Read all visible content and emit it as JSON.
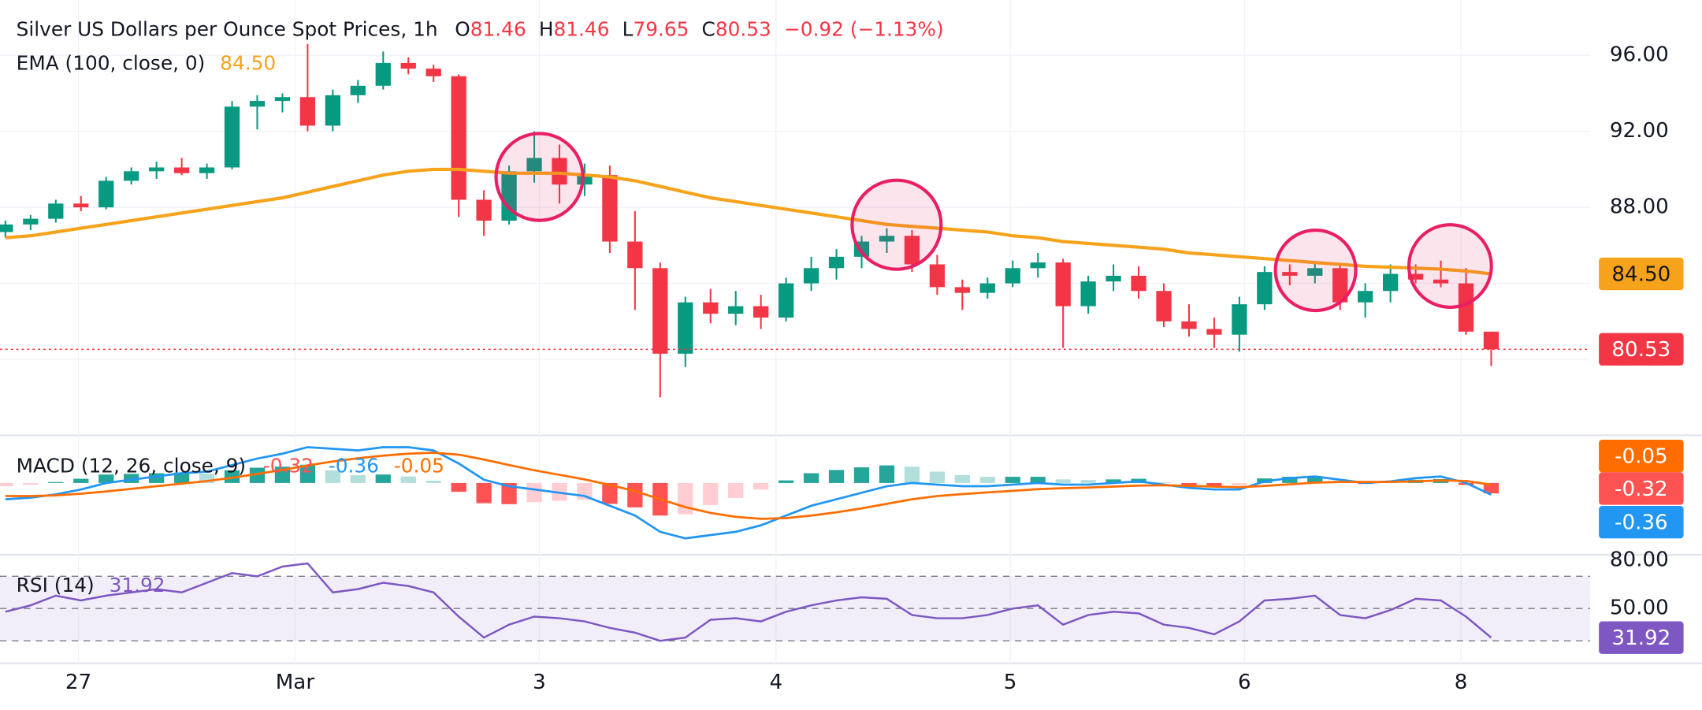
{
  "chart_data": {
    "type": "candlestick",
    "title": "Silver US Dollars per Ounce Spot Prices, 1h",
    "ohlc_letters": [
      "O",
      "H",
      "L",
      "C"
    ],
    "change": {
      "value": -0.92,
      "label": "−0.92 (−1.13%)"
    },
    "up_color": "#089981",
    "down_color": "#f23645",
    "open": [
      86.7,
      87.1,
      87.4,
      88.2,
      88.0,
      89.4,
      89.9,
      90.1,
      89.8,
      90.1,
      93.3,
      93.6,
      93.8,
      92.3,
      93.9,
      94.4,
      95.6,
      95.3,
      94.9,
      88.4,
      87.3,
      89.9,
      90.6,
      89.2,
      89.7,
      86.2,
      84.8,
      80.3,
      83.0,
      82.4,
      82.8,
      82.2,
      84.0,
      84.8,
      85.4,
      86.2,
      86.5,
      85.0,
      83.8,
      83.5,
      84.0,
      84.8,
      85.1,
      82.8,
      84.1,
      84.4,
      83.6,
      82.0,
      81.6,
      81.3,
      82.9,
      84.6,
      84.4,
      84.8,
      83.0,
      83.6,
      84.5,
      84.2,
      84.0,
      81.46
    ],
    "high": [
      87.3,
      87.6,
      88.4,
      88.6,
      89.6,
      90.1,
      90.4,
      90.6,
      90.3,
      93.6,
      93.9,
      94.0,
      96.6,
      94.2,
      94.7,
      96.2,
      95.9,
      95.5,
      95.0,
      88.9,
      90.2,
      92.0,
      91.3,
      90.3,
      90.2,
      87.8,
      85.1,
      83.3,
      83.7,
      83.6,
      83.4,
      84.3,
      85.4,
      85.8,
      86.5,
      86.9,
      86.8,
      85.5,
      84.2,
      84.3,
      85.2,
      85.6,
      85.3,
      84.4,
      85.0,
      84.9,
      84.0,
      82.9,
      82.2,
      83.3,
      84.9,
      85.0,
      85.1,
      85.0,
      84.0,
      85.0,
      85.0,
      85.2,
      84.8,
      81.46
    ],
    "low": [
      86.4,
      86.8,
      87.2,
      87.8,
      87.9,
      89.2,
      89.5,
      89.7,
      89.5,
      90.0,
      92.1,
      93.0,
      92.0,
      92.0,
      93.5,
      94.2,
      95.0,
      94.6,
      87.5,
      86.5,
      87.1,
      89.3,
      88.2,
      88.6,
      85.6,
      82.6,
      78.0,
      79.6,
      81.9,
      81.8,
      81.6,
      82.0,
      83.6,
      84.2,
      84.8,
      85.6,
      84.6,
      83.4,
      82.6,
      83.2,
      83.8,
      84.3,
      80.6,
      82.4,
      83.6,
      83.2,
      81.7,
      81.2,
      80.6,
      80.4,
      82.6,
      83.9,
      84.0,
      82.6,
      82.2,
      83.0,
      84.0,
      83.8,
      81.3,
      79.65
    ],
    "close": [
      87.1,
      87.4,
      88.2,
      88.0,
      89.4,
      89.9,
      90.1,
      89.8,
      90.1,
      93.3,
      93.6,
      93.8,
      92.3,
      93.9,
      94.4,
      95.6,
      95.3,
      94.9,
      88.4,
      87.3,
      89.9,
      90.6,
      89.2,
      89.7,
      86.2,
      84.8,
      80.3,
      83.0,
      82.4,
      82.8,
      82.2,
      84.0,
      84.8,
      85.4,
      86.2,
      86.5,
      85.0,
      83.8,
      83.5,
      84.0,
      84.8,
      85.1,
      82.8,
      84.1,
      84.4,
      83.6,
      82.0,
      81.6,
      81.3,
      82.9,
      84.6,
      84.4,
      84.8,
      83.0,
      83.6,
      84.5,
      84.2,
      84.0,
      81.46,
      80.53
    ],
    "ylim": [
      76.06,
      98.91
    ],
    "yticks": [
      {
        "value": 80,
        "label": "80.00"
      },
      {
        "value": 84,
        "label": "84.00"
      },
      {
        "value": 88,
        "label": "88.00"
      },
      {
        "value": 92,
        "label": "92.00"
      },
      {
        "value": 96,
        "label": "96.00"
      }
    ],
    "xticks": [
      {
        "value": 2.9,
        "label": "27"
      },
      {
        "value": 11.5,
        "label": "Mar"
      },
      {
        "value": 21.2,
        "label": "3"
      },
      {
        "value": 30.6,
        "label": "4"
      },
      {
        "value": 39.9,
        "label": "5"
      },
      {
        "value": 49.2,
        "label": "6"
      },
      {
        "value": 57.8,
        "label": "8"
      }
    ],
    "grid": true,
    "ema": {
      "name": "EMA (100, close, 0)",
      "color": "#f7a21b",
      "current": {
        "value": 84.5,
        "label": "84.50"
      },
      "values": [
        86.4,
        86.5,
        86.7,
        86.9,
        87.1,
        87.3,
        87.5,
        87.7,
        87.9,
        88.1,
        88.3,
        88.5,
        88.8,
        89.1,
        89.4,
        89.7,
        89.9,
        90.0,
        90.0,
        89.9,
        89.8,
        89.8,
        89.8,
        89.7,
        89.6,
        89.4,
        89.1,
        88.8,
        88.5,
        88.3,
        88.1,
        87.9,
        87.7,
        87.5,
        87.3,
        87.1,
        87.0,
        86.9,
        86.8,
        86.7,
        86.5,
        86.4,
        86.2,
        86.1,
        86.0,
        85.9,
        85.8,
        85.6,
        85.5,
        85.4,
        85.3,
        85.2,
        85.1,
        85.0,
        84.9,
        84.85,
        84.8,
        84.75,
        84.65,
        84.5
      ]
    },
    "macd": {
      "title": "MACD (12, 26, close, 9)",
      "ylim": [
        -2.17,
        1.43
      ],
      "histogram": {
        "colors": [
          "#26a69a",
          "#b2dfdb",
          "#ff5252",
          "#ffcdd2"
        ],
        "values": [
          -0.1,
          -0.05,
          0.03,
          0.13,
          0.26,
          0.28,
          0.3,
          0.32,
          0.29,
          0.39,
          0.47,
          0.5,
          0.56,
          0.39,
          0.24,
          0.26,
          0.2,
          0.07,
          -0.27,
          -0.62,
          -0.65,
          -0.59,
          -0.55,
          -0.51,
          -0.64,
          -0.75,
          -1.0,
          -0.96,
          -0.68,
          -0.46,
          -0.2,
          0.08,
          0.3,
          0.4,
          0.48,
          0.54,
          0.5,
          0.35,
          0.24,
          0.19,
          0.19,
          0.19,
          0.11,
          0.09,
          0.11,
          0.13,
          0.02,
          -0.06,
          -0.09,
          -0.07,
          0.14,
          0.19,
          0.19,
          0.07,
          -0.03,
          0.02,
          0.1,
          0.12,
          -0.06,
          -0.32
        ]
      },
      "macd": {
        "color": "#2196f3",
        "values": [
          -0.5,
          -0.45,
          -0.35,
          -0.2,
          0.0,
          0.1,
          0.2,
          0.3,
          0.35,
          0.55,
          0.75,
          0.9,
          1.1,
          1.05,
          1.0,
          1.1,
          1.1,
          1.0,
          0.6,
          0.1,
          -0.1,
          -0.2,
          -0.3,
          -0.4,
          -0.7,
          -1.0,
          -1.5,
          -1.7,
          -1.6,
          -1.5,
          -1.3,
          -1.0,
          -0.7,
          -0.5,
          -0.3,
          -0.1,
          0.0,
          -0.05,
          -0.1,
          -0.1,
          -0.05,
          0.0,
          -0.05,
          -0.05,
          0.0,
          0.05,
          -0.05,
          -0.15,
          -0.2,
          -0.2,
          0.05,
          0.15,
          0.2,
          0.1,
          0.0,
          0.05,
          0.15,
          0.2,
          0.0,
          -0.36
        ]
      },
      "signal": {
        "color": "#ff6d00",
        "values": [
          -0.4,
          -0.4,
          -0.38,
          -0.33,
          -0.26,
          -0.18,
          -0.1,
          -0.02,
          0.06,
          0.16,
          0.28,
          0.4,
          0.54,
          0.66,
          0.76,
          0.84,
          0.9,
          0.93,
          0.87,
          0.72,
          0.55,
          0.39,
          0.25,
          0.11,
          -0.06,
          -0.25,
          -0.5,
          -0.74,
          -0.92,
          -1.04,
          -1.1,
          -1.08,
          -1.0,
          -0.9,
          -0.78,
          -0.64,
          -0.5,
          -0.4,
          -0.34,
          -0.29,
          -0.24,
          -0.19,
          -0.16,
          -0.14,
          -0.11,
          -0.08,
          -0.07,
          -0.09,
          -0.11,
          -0.13,
          -0.09,
          -0.04,
          0.01,
          0.03,
          0.03,
          0.03,
          0.05,
          0.08,
          0.06,
          -0.05
        ]
      }
    },
    "rsi": {
      "title": "RSI (14)",
      "color": "#7e57c2",
      "ylim": [
        16.7,
        82.7
      ],
      "yticks": [
        {
          "value": 80,
          "label": "80.00"
        },
        {
          "value": 50,
          "label": "50.00"
        }
      ],
      "bands": [
        70,
        50,
        30
      ],
      "values": [
        48,
        52,
        58,
        55,
        58,
        60,
        62,
        60,
        66,
        72,
        70,
        76,
        78,
        60,
        62,
        66,
        64,
        60,
        45,
        32,
        40,
        45,
        44,
        42,
        38,
        35,
        30,
        32,
        43,
        44,
        42,
        48,
        52,
        55,
        57,
        56,
        46,
        44,
        44,
        46,
        50,
        52,
        40,
        46,
        48,
        47,
        40,
        38,
        34,
        42,
        55,
        56,
        58,
        46,
        44,
        49,
        56,
        55,
        45,
        31.92
      ]
    }
  }
}
